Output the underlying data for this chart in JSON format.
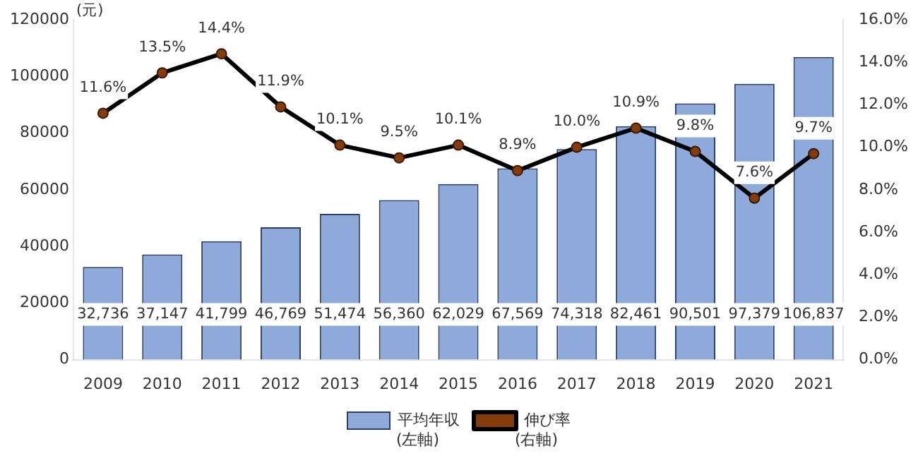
{
  "chart_data": {
    "type": "bar",
    "ylabel": "(元)",
    "categories": [
      "2009",
      "2010",
      "2011",
      "2012",
      "2013",
      "2014",
      "2015",
      "2016",
      "2017",
      "2018",
      "2019",
      "2020",
      "2021"
    ],
    "series": [
      {
        "name": "平均年収",
        "color": "#8eaadb",
        "values": [
          32736,
          37147,
          41799,
          46769,
          51474,
          56360,
          62029,
          67569,
          74318,
          82461,
          90501,
          97379,
          106837
        ],
        "value_labels": [
          "32,736",
          "37,147",
          "41,799",
          "46,769",
          "51,474",
          "56,360",
          "62,029",
          "67,569",
          "74,318",
          "82,461",
          "90,501",
          "97,379",
          "106,837"
        ]
      },
      {
        "name": "伸び率",
        "type": "line",
        "axis": "y2",
        "color": "#000000",
        "values": [
          11.6,
          13.5,
          14.4,
          11.9,
          10.1,
          9.5,
          10.1,
          8.9,
          10.0,
          10.9,
          9.8,
          7.6,
          9.7
        ],
        "value_labels": [
          "11.6%",
          "13.5%",
          "14.4%",
          "11.9%",
          "10.1%",
          "9.5%",
          "10.1%",
          "8.9%",
          "10.0%",
          "10.9%",
          "9.8%",
          "7.6%",
          "9.7%"
        ]
      }
    ],
    "ylim": [
      0,
      120000
    ],
    "yticks": [
      0,
      20000,
      40000,
      60000,
      80000,
      100000,
      120000
    ],
    "y2lim": [
      0,
      16
    ],
    "y2ticks": [
      {
        "value": 0,
        "label": "0.0%"
      },
      {
        "value": 2,
        "label": "2.0%"
      },
      {
        "value": 4,
        "label": "4.0%"
      },
      {
        "value": 6,
        "label": "6.0%"
      },
      {
        "value": 8,
        "label": "8.0%"
      },
      {
        "value": 10,
        "label": "10.0%"
      },
      {
        "value": 12,
        "label": "12.0%"
      },
      {
        "value": 14,
        "label": "14.0%"
      },
      {
        "value": 16,
        "label": "16.0%"
      }
    ],
    "legend": "bottom",
    "marker": "circle",
    "annotations": [
      "(左軸)",
      "(右軸)"
    ]
  }
}
